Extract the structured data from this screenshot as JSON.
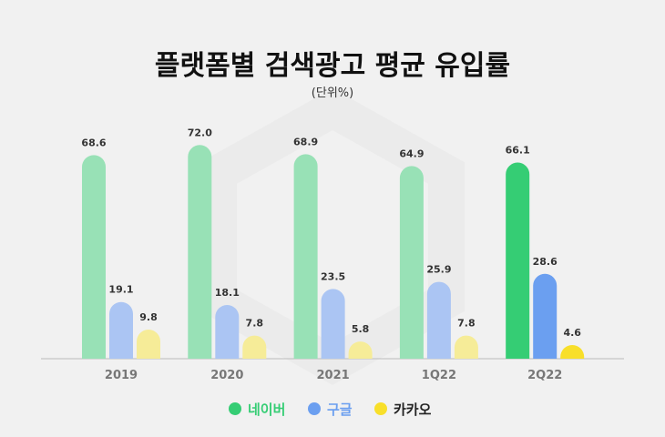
{
  "chart_data": {
    "type": "bar",
    "title": "플랫폼별 검색광고 평균 유입률",
    "subtitle": "(단위%)",
    "categories": [
      "2019",
      "2020",
      "2021",
      "1Q22",
      "2Q22"
    ],
    "highlight_category": "2Q22",
    "series": [
      {
        "name": "네이버",
        "values": [
          68.6,
          72.0,
          68.9,
          64.9,
          66.1
        ],
        "color": "#35cd74",
        "faded_color": "#98e1b6"
      },
      {
        "name": "구글",
        "values": [
          19.1,
          18.1,
          23.5,
          25.9,
          28.6
        ],
        "color": "#6b9ff0",
        "faded_color": "#abc5f3"
      },
      {
        "name": "카카오",
        "values": [
          9.8,
          7.8,
          5.8,
          7.8,
          4.6
        ],
        "color": "#f8df2a",
        "faded_color": "#f6ec98"
      }
    ],
    "ylim": [
      0,
      80
    ],
    "grid": false,
    "legend": "bottom",
    "legend_text_colors": [
      "#35cd74",
      "#6b9ff0",
      "#222222"
    ]
  }
}
